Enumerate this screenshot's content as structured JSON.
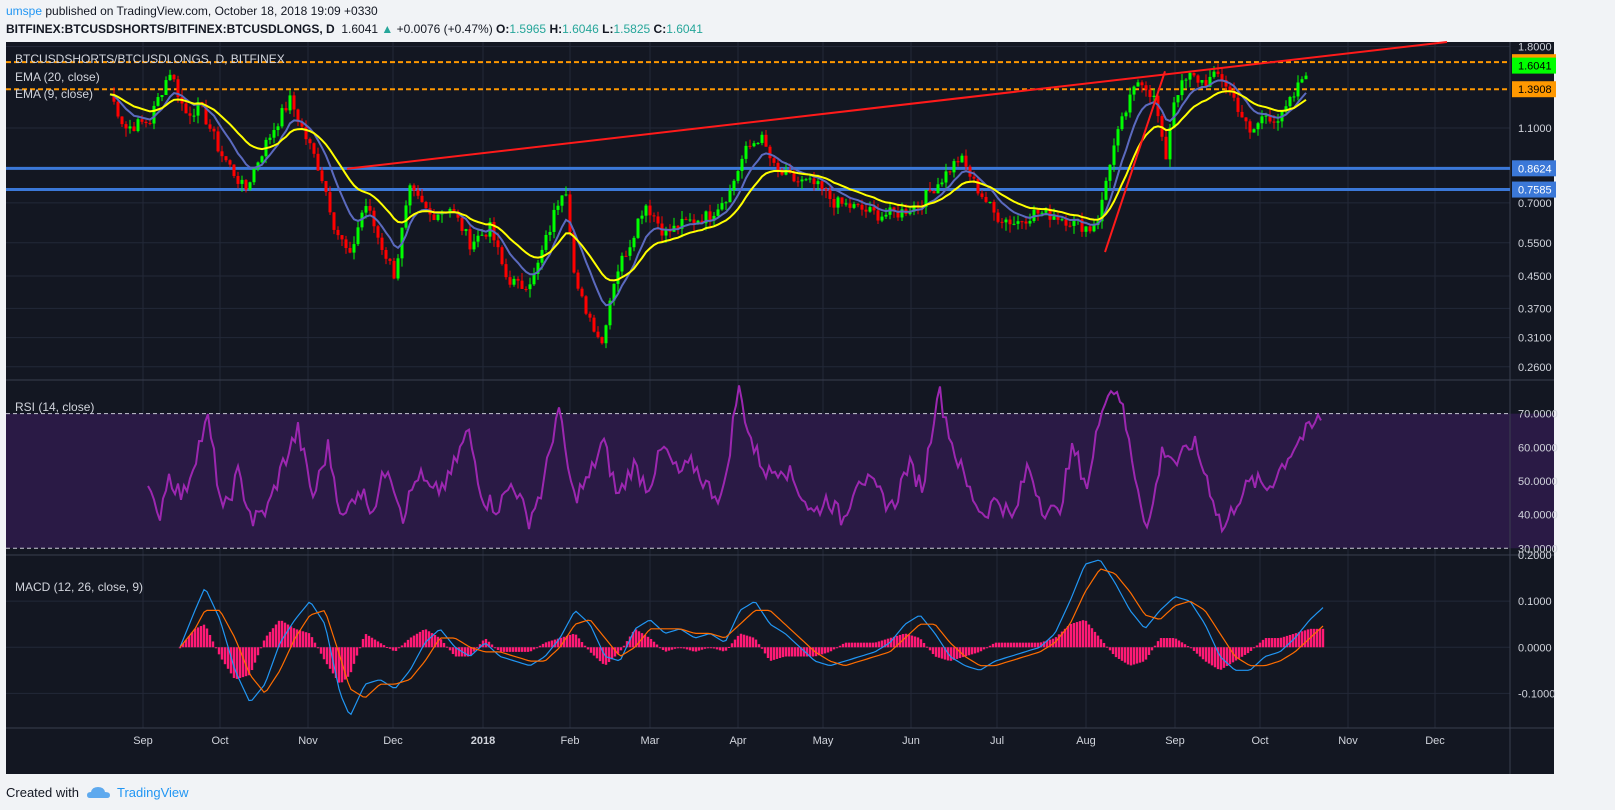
{
  "header": {
    "user": "umspe",
    "published": "published on TradingView.com, October 18, 2018 19:09 +0330",
    "symbol_full": "BITFINEX:BTCUSDSHORTS/BITFINEX:BTCUSDLONGS, D",
    "last": "1.6041",
    "up_arrow": "▲",
    "change": "+0.0076 (+0.47%)",
    "o_label": "O:",
    "o_val": "1.5965",
    "h_label": "H:",
    "h_val": "1.6046",
    "l_label": "L:",
    "l_val": "1.5825",
    "c_label": "C:",
    "c_val": "1.6041"
  },
  "panes": {
    "price_title": "BTCUSDSHORTS/BTCUSDLONGS, D, BITFINEX",
    "ema20_label": "EMA (20, close)",
    "ema9_label": "EMA (9, close)",
    "rsi_label": "RSI (14, close)",
    "macd_label": "MACD (12, 26, close, 9)"
  },
  "footer": {
    "created_with": "Created with",
    "brand": "TradingView"
  },
  "colors": {
    "bg": "#131722",
    "rsi_band": "#2a1a45",
    "up": "#00ff00",
    "down": "#ff0000",
    "ema20": "#ffff00",
    "ema9": "#5b6abf",
    "trend": "#ff1a1a",
    "support": "#3b78d8",
    "resistance": "#ff9800",
    "rsi": "#9c27b0",
    "macd": "#2196f3",
    "signal": "#ff6d00",
    "hist": "#ff1a75"
  },
  "chart_data": [
    {
      "type": "candlestick",
      "title": "BTCUSDSHORTS/BTCUSDLONGS, D, BITFINEX",
      "scale": "log",
      "ylim": [
        0.24,
        1.85
      ],
      "x_ticks": [
        "Sep",
        "Oct",
        "Nov",
        "Dec",
        "2018",
        "Feb",
        "Mar",
        "Apr",
        "May",
        "Jun",
        "Jul",
        "Aug",
        "Sep",
        "Oct",
        "Nov",
        "Dec"
      ],
      "y_ticks": [
        "1.8000",
        "1.1000",
        "0.7000",
        "0.5500",
        "0.4500",
        "0.3700",
        "0.3100",
        "0.2600"
      ],
      "close_path": [
        [
          0,
          1.35
        ],
        [
          15,
          1.1
        ],
        [
          40,
          1.15
        ],
        [
          60,
          1.55
        ],
        [
          75,
          1.2
        ],
        [
          90,
          1.25
        ],
        [
          110,
          0.95
        ],
        [
          135,
          0.75
        ],
        [
          160,
          1.05
        ],
        [
          180,
          1.3
        ],
        [
          195,
          1.05
        ],
        [
          210,
          0.85
        ],
        [
          225,
          0.6
        ],
        [
          240,
          0.5
        ],
        [
          255,
          0.7
        ],
        [
          270,
          0.55
        ],
        [
          285,
          0.45
        ],
        [
          300,
          0.75
        ],
        [
          320,
          0.65
        ],
        [
          340,
          0.68
        ],
        [
          360,
          0.55
        ],
        [
          380,
          0.6
        ],
        [
          395,
          0.45
        ],
        [
          410,
          0.42
        ],
        [
          425,
          0.45
        ],
        [
          440,
          0.6
        ],
        [
          455,
          0.8
        ],
        [
          465,
          0.42
        ],
        [
          480,
          0.35
        ],
        [
          492,
          0.3
        ],
        [
          505,
          0.45
        ],
        [
          520,
          0.55
        ],
        [
          535,
          0.7
        ],
        [
          555,
          0.58
        ],
        [
          575,
          0.62
        ],
        [
          600,
          0.65
        ],
        [
          620,
          0.75
        ],
        [
          635,
          0.95
        ],
        [
          650,
          1.05
        ],
        [
          665,
          0.85
        ],
        [
          685,
          0.8
        ],
        [
          705,
          0.78
        ],
        [
          725,
          0.7
        ],
        [
          745,
          0.68
        ],
        [
          770,
          0.65
        ],
        [
          790,
          0.66
        ],
        [
          810,
          0.7
        ],
        [
          830,
          0.8
        ],
        [
          850,
          0.92
        ],
        [
          865,
          0.78
        ],
        [
          885,
          0.65
        ],
        [
          905,
          0.62
        ],
        [
          925,
          0.66
        ],
        [
          945,
          0.65
        ],
        [
          965,
          0.62
        ],
        [
          980,
          0.6
        ],
        [
          990,
          0.65
        ],
        [
          1000,
          0.9
        ],
        [
          1015,
          1.2
        ],
        [
          1030,
          1.5
        ],
        [
          1045,
          1.3
        ],
        [
          1055,
          0.88
        ],
        [
          1065,
          1.35
        ],
        [
          1080,
          1.5
        ],
        [
          1095,
          1.45
        ],
        [
          1110,
          1.52
        ],
        [
          1125,
          1.3
        ],
        [
          1140,
          1.05
        ],
        [
          1155,
          1.2
        ],
        [
          1170,
          1.15
        ],
        [
          1185,
          1.35
        ],
        [
          1198,
          1.6
        ]
      ],
      "ema20_label": "EMA (20, close)",
      "ema9_label": "EMA (9, close)",
      "trendline": [
        [
          237,
          0.86
        ],
        [
          1337,
          1.85
        ]
      ],
      "support_lines": [
        {
          "value": 0.8624,
          "label": "0.8624"
        },
        {
          "value": 0.7585,
          "label": "0.7585"
        }
      ],
      "resistance_lines": [
        {
          "value": 1.6377,
          "label": "1.6377"
        },
        {
          "value": 1.3908,
          "label": "1.3908"
        }
      ],
      "last_price": {
        "value": 1.6041,
        "label": "1.6041"
      }
    },
    {
      "type": "line",
      "title": "RSI (14, close)",
      "ylim": [
        28,
        80
      ],
      "y_ticks": [
        "70.0000",
        "60.0000",
        "50.0000",
        "40.0000",
        "30.0000"
      ],
      "bands": [
        30,
        70
      ],
      "path": [
        [
          0,
          48
        ],
        [
          10,
          38
        ],
        [
          20,
          52
        ],
        [
          35,
          45
        ],
        [
          50,
          60
        ],
        [
          60,
          68
        ],
        [
          75,
          40
        ],
        [
          90,
          52
        ],
        [
          105,
          38
        ],
        [
          120,
          42
        ],
        [
          135,
          55
        ],
        [
          150,
          65
        ],
        [
          165,
          45
        ],
        [
          180,
          60
        ],
        [
          195,
          38
        ],
        [
          210,
          48
        ],
        [
          225,
          42
        ],
        [
          240,
          55
        ],
        [
          255,
          40
        ],
        [
          270,
          52
        ],
        [
          285,
          46
        ],
        [
          300,
          50
        ],
        [
          320,
          65
        ],
        [
          335,
          45
        ],
        [
          350,
          42
        ],
        [
          365,
          50
        ],
        [
          380,
          38
        ],
        [
          395,
          48
        ],
        [
          410,
          72
        ],
        [
          425,
          45
        ],
        [
          440,
          50
        ],
        [
          455,
          62
        ],
        [
          470,
          45
        ],
        [
          485,
          55
        ],
        [
          500,
          48
        ],
        [
          515,
          60
        ],
        [
          530,
          52
        ],
        [
          545,
          55
        ],
        [
          560,
          48
        ],
        [
          575,
          45
        ],
        [
          590,
          78
        ],
        [
          605,
          60
        ],
        [
          620,
          52
        ],
        [
          635,
          55
        ],
        [
          650,
          48
        ],
        [
          665,
          40
        ],
        [
          680,
          45
        ],
        [
          695,
          38
        ],
        [
          710,
          52
        ],
        [
          725,
          48
        ],
        [
          745,
          42
        ],
        [
          760,
          55
        ],
        [
          775,
          48
        ],
        [
          790,
          78
        ],
        [
          805,
          60
        ],
        [
          820,
          48
        ],
        [
          835,
          40
        ],
        [
          850,
          45
        ],
        [
          865,
          38
        ],
        [
          880,
          55
        ],
        [
          895,
          42
        ],
        [
          910,
          40
        ],
        [
          925,
          60
        ],
        [
          940,
          48
        ],
        [
          955,
          75
        ],
        [
          970,
          78
        ],
        [
          985,
          55
        ],
        [
          1000,
          35
        ],
        [
          1015,
          60
        ],
        [
          1030,
          55
        ],
        [
          1045,
          62
        ],
        [
          1060,
          50
        ],
        [
          1075,
          35
        ],
        [
          1090,
          45
        ],
        [
          1105,
          50
        ],
        [
          1120,
          48
        ],
        [
          1135,
          55
        ],
        [
          1150,
          62
        ],
        [
          1165,
          66
        ],
        [
          1175,
          70
        ]
      ]
    },
    {
      "type": "line",
      "title": "MACD (12, 26, close, 9)",
      "ylim": [
        -0.175,
        0.2
      ],
      "y_ticks": [
        "0.2000",
        "0.1000",
        "0.0000",
        "-0.1000"
      ],
      "macd_path": [
        [
          0,
          0.0
        ],
        [
          15,
          0.08
        ],
        [
          25,
          0.13
        ],
        [
          40,
          0.06
        ],
        [
          55,
          -0.05
        ],
        [
          70,
          -0.12
        ],
        [
          85,
          -0.08
        ],
        [
          100,
          0.01
        ],
        [
          115,
          0.06
        ],
        [
          130,
          0.1
        ],
        [
          145,
          0.05
        ],
        [
          160,
          -0.1
        ],
        [
          170,
          -0.15
        ],
        [
          185,
          -0.08
        ],
        [
          200,
          -0.07
        ],
        [
          215,
          -0.09
        ],
        [
          230,
          -0.05
        ],
        [
          245,
          0.01
        ],
        [
          260,
          0.04
        ],
        [
          275,
          0.0
        ],
        [
          290,
          -0.02
        ],
        [
          305,
          0.01
        ],
        [
          320,
          -0.02
        ],
        [
          335,
          -0.03
        ],
        [
          350,
          -0.04
        ],
        [
          365,
          -0.02
        ],
        [
          380,
          0.02
        ],
        [
          395,
          0.08
        ],
        [
          410,
          0.05
        ],
        [
          425,
          -0.02
        ],
        [
          440,
          -0.03
        ],
        [
          455,
          0.04
        ],
        [
          470,
          0.06
        ],
        [
          485,
          0.03
        ],
        [
          500,
          0.04
        ],
        [
          515,
          0.02
        ],
        [
          530,
          0.03
        ],
        [
          545,
          0.01
        ],
        [
          560,
          0.08
        ],
        [
          575,
          0.1
        ],
        [
          590,
          0.05
        ],
        [
          605,
          0.03
        ],
        [
          620,
          0.0
        ],
        [
          635,
          -0.03
        ],
        [
          650,
          -0.04
        ],
        [
          665,
          -0.03
        ],
        [
          680,
          -0.02
        ],
        [
          695,
          -0.01
        ],
        [
          710,
          0.01
        ],
        [
          725,
          0.05
        ],
        [
          740,
          0.07
        ],
        [
          755,
          0.03
        ],
        [
          770,
          -0.02
        ],
        [
          785,
          -0.04
        ],
        [
          800,
          -0.05
        ],
        [
          815,
          -0.03
        ],
        [
          830,
          -0.02
        ],
        [
          845,
          -0.01
        ],
        [
          860,
          -0.0
        ],
        [
          875,
          0.03
        ],
        [
          890,
          0.1
        ],
        [
          905,
          0.18
        ],
        [
          920,
          0.19
        ],
        [
          935,
          0.14
        ],
        [
          950,
          0.08
        ],
        [
          965,
          0.04
        ],
        [
          980,
          0.08
        ],
        [
          995,
          0.11
        ],
        [
          1010,
          0.1
        ],
        [
          1025,
          0.05
        ],
        [
          1040,
          -0.02
        ],
        [
          1055,
          -0.05
        ],
        [
          1070,
          -0.05
        ],
        [
          1085,
          -0.02
        ],
        [
          1100,
          -0.01
        ],
        [
          1115,
          0.02
        ],
        [
          1130,
          0.06
        ],
        [
          1145,
          0.09
        ]
      ],
      "signal_path": [
        [
          0,
          0.0
        ],
        [
          15,
          0.04
        ],
        [
          25,
          0.08
        ],
        [
          40,
          0.08
        ],
        [
          55,
          0.02
        ],
        [
          70,
          -0.06
        ],
        [
          85,
          -0.1
        ],
        [
          100,
          -0.05
        ],
        [
          115,
          0.02
        ],
        [
          130,
          0.07
        ],
        [
          145,
          0.08
        ],
        [
          160,
          -0.02
        ],
        [
          170,
          -0.09
        ],
        [
          185,
          -0.11
        ],
        [
          200,
          -0.08
        ],
        [
          215,
          -0.08
        ],
        [
          230,
          -0.07
        ],
        [
          245,
          -0.03
        ],
        [
          260,
          0.02
        ],
        [
          275,
          0.02
        ],
        [
          290,
          0.0
        ],
        [
          305,
          -0.01
        ],
        [
          320,
          -0.01
        ],
        [
          335,
          -0.02
        ],
        [
          350,
          -0.03
        ],
        [
          365,
          -0.03
        ],
        [
          380,
          0.0
        ],
        [
          395,
          0.05
        ],
        [
          410,
          0.06
        ],
        [
          425,
          0.02
        ],
        [
          440,
          -0.02
        ],
        [
          455,
          0.0
        ],
        [
          470,
          0.04
        ],
        [
          485,
          0.04
        ],
        [
          500,
          0.04
        ],
        [
          515,
          0.03
        ],
        [
          530,
          0.03
        ],
        [
          545,
          0.02
        ],
        [
          560,
          0.05
        ],
        [
          575,
          0.08
        ],
        [
          590,
          0.08
        ],
        [
          605,
          0.05
        ],
        [
          620,
          0.02
        ],
        [
          635,
          -0.01
        ],
        [
          650,
          -0.03
        ],
        [
          665,
          -0.04
        ],
        [
          680,
          -0.03
        ],
        [
          695,
          -0.02
        ],
        [
          710,
          -0.01
        ],
        [
          725,
          0.02
        ],
        [
          740,
          0.05
        ],
        [
          755,
          0.05
        ],
        [
          770,
          0.01
        ],
        [
          785,
          -0.02
        ],
        [
          800,
          -0.04
        ],
        [
          815,
          -0.04
        ],
        [
          830,
          -0.03
        ],
        [
          845,
          -0.02
        ],
        [
          860,
          -0.01
        ],
        [
          875,
          0.01
        ],
        [
          890,
          0.05
        ],
        [
          905,
          0.12
        ],
        [
          920,
          0.17
        ],
        [
          935,
          0.16
        ],
        [
          950,
          0.12
        ],
        [
          965,
          0.07
        ],
        [
          980,
          0.06
        ],
        [
          995,
          0.09
        ],
        [
          1010,
          0.1
        ],
        [
          1025,
          0.08
        ],
        [
          1040,
          0.03
        ],
        [
          1055,
          -0.02
        ],
        [
          1070,
          -0.04
        ],
        [
          1085,
          -0.04
        ],
        [
          1100,
          -0.03
        ],
        [
          1115,
          -0.01
        ],
        [
          1130,
          0.02
        ],
        [
          1145,
          0.05
        ]
      ]
    }
  ]
}
